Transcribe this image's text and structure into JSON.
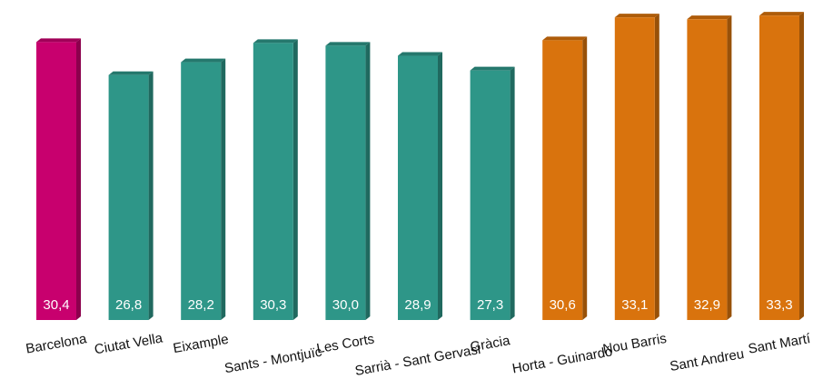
{
  "chart_data": {
    "type": "bar",
    "categories": [
      "Barcelona",
      "Ciutat Vella",
      "Eixample",
      "Sants - Montjuïc",
      "Les Corts",
      "Sarrià - Sant Gervasi",
      "Gràcia",
      "Horta - Guinardó",
      "Nou Barris",
      "Sant Andreu",
      "Sant Martí"
    ],
    "values": [
      30.4,
      26.8,
      28.2,
      30.3,
      30.0,
      28.9,
      27.3,
      30.6,
      33.1,
      32.9,
      33.3
    ],
    "value_labels": [
      "30,4",
      "26,8",
      "28,2",
      "30,3",
      "30,0",
      "28,9",
      "27,3",
      "30,6",
      "33,1",
      "32,9",
      "33,3"
    ],
    "colors": [
      "#c8006e",
      "#2e9688",
      "#2e9688",
      "#2e9688",
      "#2e9688",
      "#2e9688",
      "#2e9688",
      "#d9730d",
      "#d9730d",
      "#d9730d",
      "#d9730d"
    ],
    "ylim": [
      0,
      35
    ]
  }
}
